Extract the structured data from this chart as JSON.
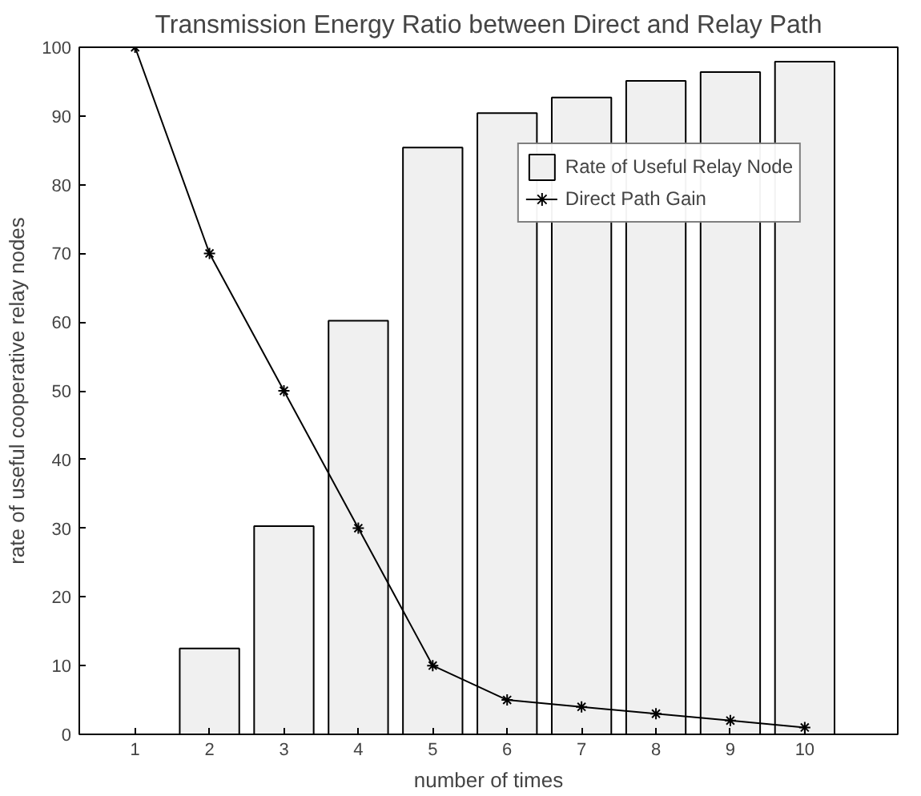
{
  "chart_data": {
    "type": "bar",
    "title": "Transmission Energy Ratio between Direct and Relay Path",
    "xlabel": "number of times",
    "ylabel": "rate of useful cooperative relay nodes",
    "x": [
      1,
      2,
      3,
      4,
      5,
      6,
      7,
      8,
      9,
      10
    ],
    "xlim": [
      0.25,
      11.25
    ],
    "xticks": [
      1,
      2,
      3,
      4,
      5,
      6,
      7,
      8,
      9,
      10
    ],
    "ylim": [
      0,
      100
    ],
    "yticks": [
      0,
      10,
      20,
      30,
      40,
      50,
      60,
      70,
      80,
      90,
      100
    ],
    "grid": false,
    "legend": "top right",
    "series": [
      {
        "name": "Rate of Useful Relay Node",
        "color": "#f0f0f0",
        "values": [
          null,
          12.5,
          30.3,
          60.2,
          85.4,
          90.4,
          92.7,
          95.1,
          96.4,
          97.9
        ]
      },
      {
        "name": "Direct Path Gain",
        "type": "line",
        "color": "#000000",
        "marker": "cross",
        "line_style": "solid",
        "values": [
          100,
          70,
          50,
          30,
          10,
          5,
          4,
          3,
          2,
          1
        ]
      }
    ]
  }
}
